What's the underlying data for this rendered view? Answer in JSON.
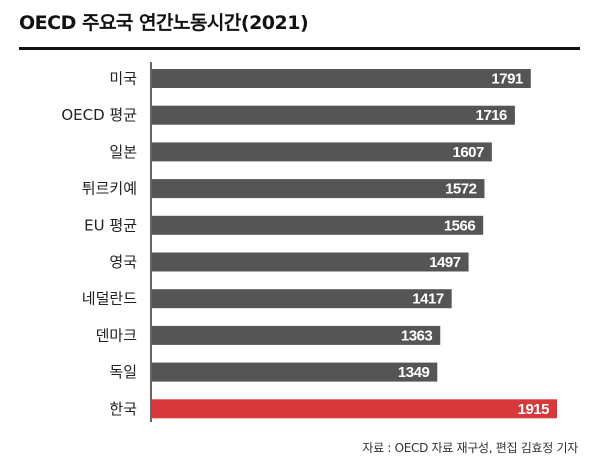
{
  "title": "OECD 주요국 연간노동시간(2021)",
  "source": "자료 : OECD 자료 재구성, 편집 김효정 기자",
  "colors": {
    "default_bar": "#555555",
    "highlight_bar": "#d6383c",
    "axis": "#333333"
  },
  "chart_data": {
    "type": "bar",
    "orientation": "horizontal",
    "title": "OECD 주요국 연간노동시간(2021)",
    "categories": [
      "미국",
      "OECD 평균",
      "일본",
      "튀르키예",
      "EU 평균",
      "영국",
      "네덜란드",
      "덴마크",
      "독일",
      "한국"
    ],
    "values": [
      1791,
      1716,
      1607,
      1572,
      1566,
      1497,
      1417,
      1363,
      1349,
      1915
    ],
    "highlight": [
      "한국"
    ],
    "xlim": [
      0,
      2000
    ],
    "xlabel": "",
    "ylabel": "",
    "grid": false
  }
}
